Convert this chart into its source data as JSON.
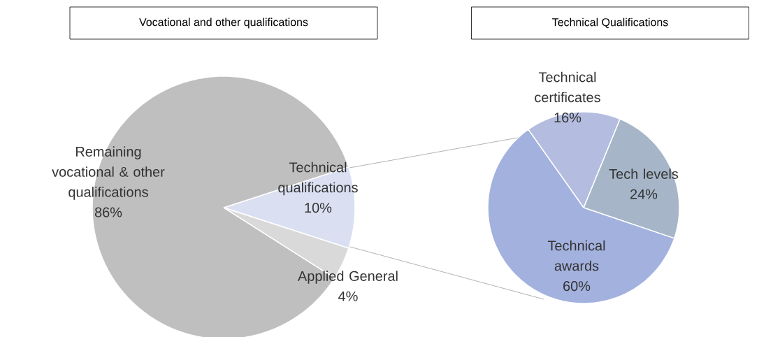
{
  "chart_data": [
    {
      "type": "pie",
      "title": "Vocational and other qualifications",
      "categories": [
        "Technical qualifications",
        "Remaining vocational & other qualifications",
        "Applied General"
      ],
      "values": [
        10,
        86,
        4
      ],
      "value_labels": [
        "10%",
        "86%",
        "4%"
      ],
      "colors": [
        "#dae0f2",
        "#bfbfbf",
        "#d9d9d9"
      ]
    },
    {
      "type": "pie",
      "title": "Technical Qualifications",
      "categories": [
        "Tech levels",
        "Technical certificates",
        "Technical awards"
      ],
      "values": [
        24,
        16,
        60
      ],
      "value_labels": [
        "24%",
        "16%",
        "60%"
      ],
      "colors": [
        "#a6b6c8",
        "#b4bddf",
        "#a3b1de"
      ]
    }
  ]
}
